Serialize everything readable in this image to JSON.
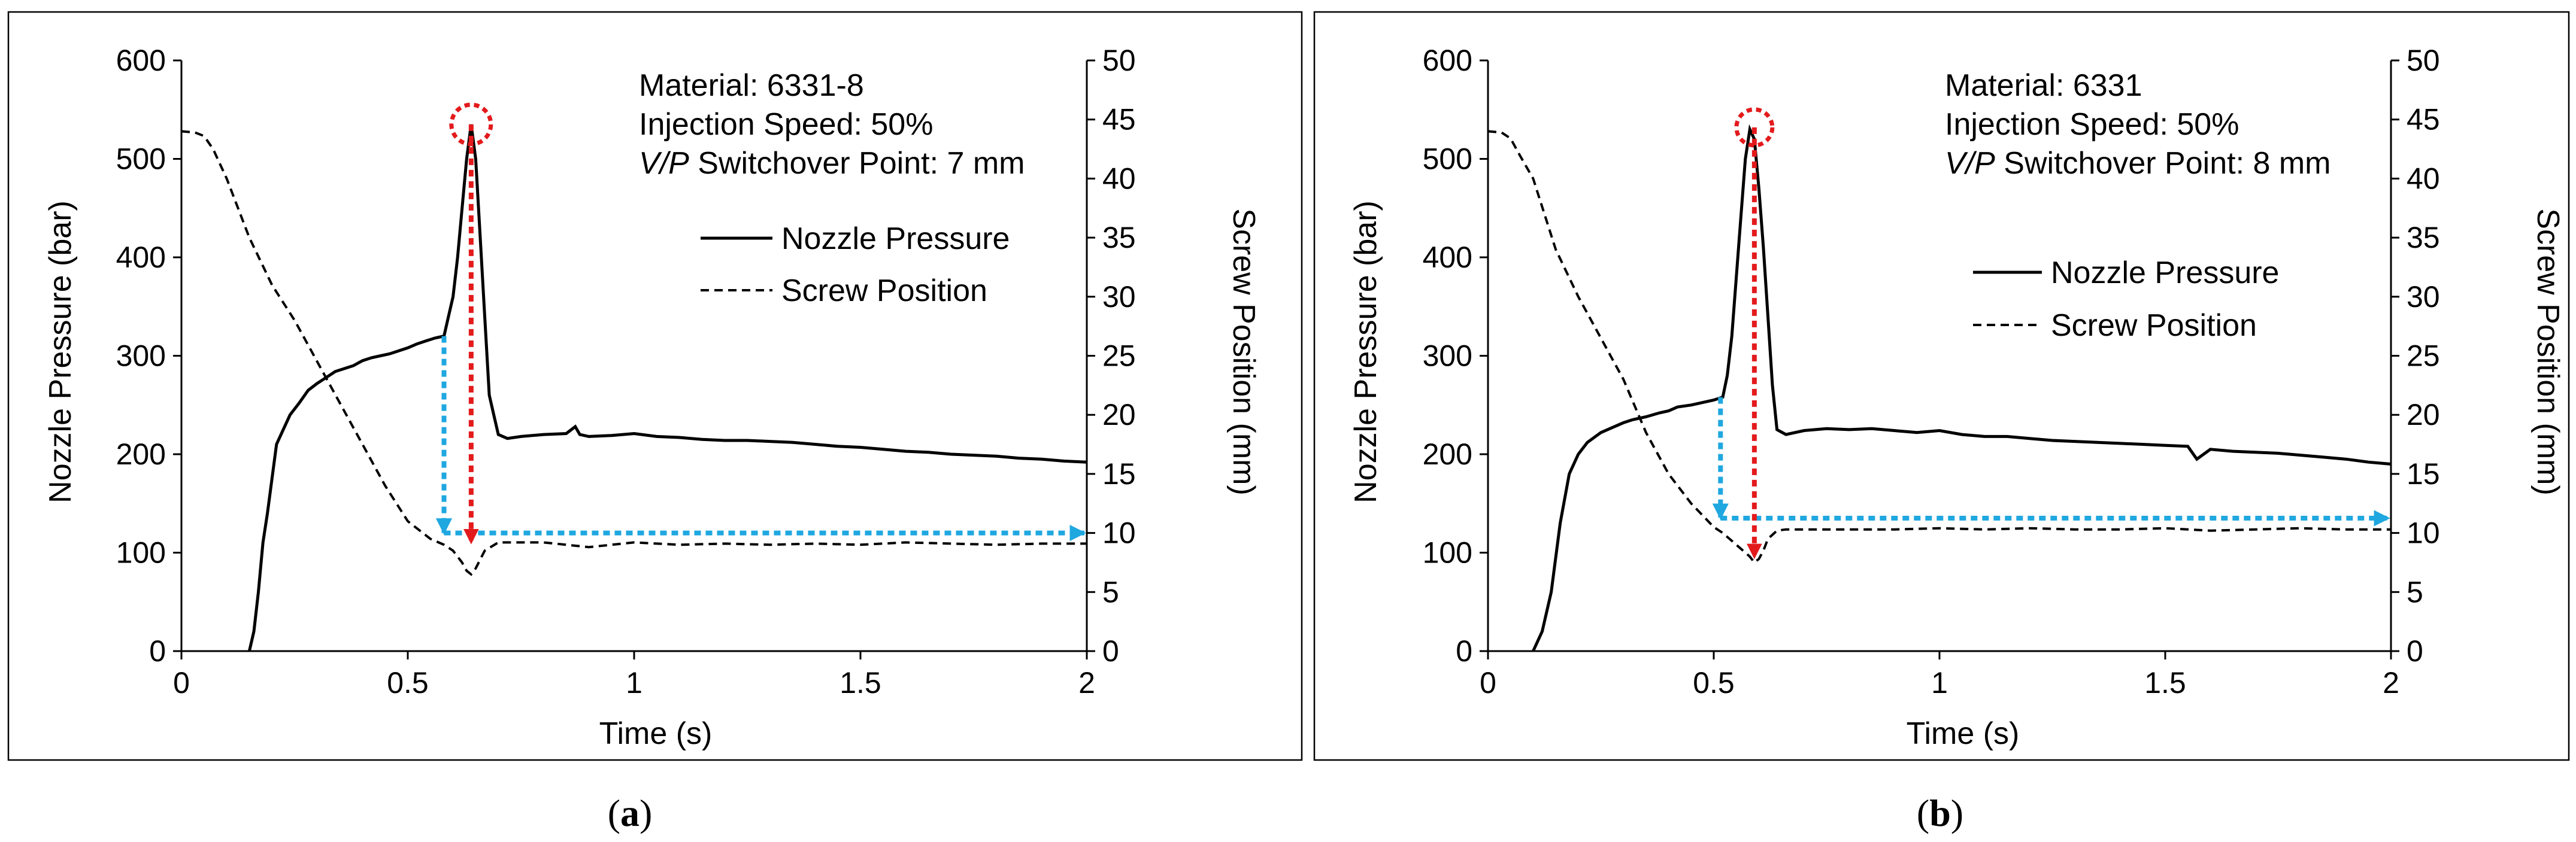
{
  "chart_data": [
    {
      "type": "line",
      "panel_label": "(a)",
      "panel_letter": "a",
      "info_lines": [
        {
          "text": "Material: 6331-8"
        },
        {
          "text": "Injection Speed: 50%"
        },
        {
          "text": "Switchover Point: 7 mm",
          "prefix_italic": "V/P"
        }
      ],
      "xlabel": "Time (s)",
      "ylabel": "Nozzle Pressure (bar)",
      "y2label": "Screw Position (mm)",
      "xlim": [
        0,
        2
      ],
      "xticks": [
        "0",
        "0.5",
        "1",
        "1.5",
        "2"
      ],
      "ylim": [
        0,
        600
      ],
      "yticks": [
        "0",
        "100",
        "200",
        "300",
        "400",
        "500",
        "600"
      ],
      "y2lim": [
        0,
        50
      ],
      "y2ticks": [
        "0",
        "5",
        "10",
        "15",
        "20",
        "25",
        "30",
        "35",
        "40",
        "45",
        "50"
      ],
      "legend": [
        "Nozzle Pressure",
        "Screw Position"
      ],
      "series": [
        {
          "name": "Nozzle Pressure",
          "axis": "left",
          "style": "solid",
          "x": [
            0.15,
            0.16,
            0.17,
            0.18,
            0.19,
            0.2,
            0.21,
            0.22,
            0.24,
            0.26,
            0.28,
            0.3,
            0.32,
            0.34,
            0.36,
            0.38,
            0.4,
            0.42,
            0.44,
            0.46,
            0.48,
            0.5,
            0.52,
            0.54,
            0.56,
            0.58,
            0.59,
            0.6,
            0.61,
            0.62,
            0.63,
            0.64,
            0.65,
            0.66,
            0.67,
            0.68,
            0.69,
            0.7,
            0.72,
            0.75,
            0.8,
            0.85,
            0.87,
            0.88,
            0.9,
            0.95,
            1.0,
            1.05,
            1.1,
            1.15,
            1.2,
            1.25,
            1.3,
            1.35,
            1.4,
            1.45,
            1.5,
            1.55,
            1.6,
            1.65,
            1.7,
            1.75,
            1.8,
            1.85,
            1.9,
            1.95,
            2.0
          ],
          "y": [
            0,
            20,
            60,
            110,
            140,
            175,
            210,
            220,
            240,
            252,
            265,
            272,
            278,
            284,
            287,
            290,
            295,
            298,
            300,
            302,
            305,
            308,
            312,
            315,
            318,
            320,
            340,
            360,
            400,
            450,
            500,
            535,
            500,
            420,
            340,
            260,
            240,
            220,
            216,
            218,
            220,
            221,
            228,
            220,
            218,
            219,
            221,
            218,
            217,
            215,
            214,
            214,
            213,
            212,
            210,
            208,
            207,
            205,
            203,
            202,
            200,
            199,
            198,
            196,
            195,
            193,
            192
          ]
        },
        {
          "name": "Screw Position",
          "axis": "right",
          "style": "dashed",
          "x": [
            0.0,
            0.03,
            0.05,
            0.07,
            0.1,
            0.15,
            0.2,
            0.25,
            0.3,
            0.35,
            0.4,
            0.45,
            0.5,
            0.55,
            0.58,
            0.6,
            0.62,
            0.63,
            0.64,
            0.65,
            0.67,
            0.7,
            0.75,
            0.8,
            0.85,
            0.9,
            0.95,
            1.0,
            1.1,
            1.2,
            1.3,
            1.4,
            1.5,
            1.6,
            1.7,
            1.8,
            1.9,
            2.0
          ],
          "y": [
            44.0,
            43.9,
            43.6,
            42.5,
            40.0,
            35.0,
            31.0,
            28.0,
            24.5,
            21.0,
            17.5,
            14.0,
            11.0,
            9.5,
            9.0,
            8.5,
            7.5,
            6.8,
            6.5,
            7.0,
            8.5,
            9.2,
            9.2,
            9.2,
            9.0,
            8.8,
            9.0,
            9.2,
            9.0,
            9.1,
            9.0,
            9.1,
            9.0,
            9.2,
            9.1,
            9.0,
            9.1,
            9.1
          ]
        }
      ],
      "annotations": {
        "peak": {
          "x": 0.64,
          "y": 535
        },
        "blue_vertical": {
          "x": 0.58,
          "y_from": 320,
          "y_to": 120
        },
        "blue_horizontal": {
          "y": 120,
          "x_from": 0.58,
          "x_to": 2.0
        },
        "red_arrow": {
          "x": 0.64,
          "y_from": 535,
          "y_to": 110
        }
      }
    },
    {
      "type": "line",
      "panel_label": "(b)",
      "panel_letter": "b",
      "info_lines": [
        {
          "text": "Material: 6331"
        },
        {
          "text": "Injection Speed: 50%"
        },
        {
          "text": "Switchover Point: 8 mm",
          "prefix_italic": "V/P"
        }
      ],
      "xlabel": "Time (s)",
      "ylabel": "Nozzle Pressure (bar)",
      "y2label": "Screw Position (mm)",
      "xlim": [
        0,
        2
      ],
      "xticks": [
        "0",
        "0.5",
        "1",
        "1.5",
        "2"
      ],
      "ylim": [
        0,
        600
      ],
      "yticks": [
        "0",
        "100",
        "200",
        "300",
        "400",
        "500",
        "600"
      ],
      "y2lim": [
        0,
        50
      ],
      "y2ticks": [
        "0",
        "5",
        "10",
        "15",
        "20",
        "25",
        "30",
        "35",
        "40",
        "45",
        "50"
      ],
      "legend": [
        "Nozzle Pressure",
        "Screw Position"
      ],
      "series": [
        {
          "name": "Nozzle Pressure",
          "axis": "left",
          "style": "solid",
          "x": [
            0.1,
            0.12,
            0.14,
            0.16,
            0.18,
            0.2,
            0.22,
            0.25,
            0.28,
            0.3,
            0.32,
            0.35,
            0.38,
            0.4,
            0.42,
            0.45,
            0.48,
            0.5,
            0.52,
            0.53,
            0.54,
            0.55,
            0.56,
            0.57,
            0.58,
            0.59,
            0.6,
            0.61,
            0.62,
            0.63,
            0.64,
            0.66,
            0.7,
            0.75,
            0.8,
            0.85,
            0.9,
            0.95,
            1.0,
            1.05,
            1.1,
            1.15,
            1.2,
            1.25,
            1.3,
            1.35,
            1.4,
            1.45,
            1.5,
            1.55,
            1.57,
            1.6,
            1.65,
            1.7,
            1.75,
            1.8,
            1.85,
            1.9,
            1.95,
            2.0
          ],
          "y": [
            0,
            20,
            60,
            130,
            180,
            200,
            212,
            222,
            228,
            232,
            235,
            238,
            242,
            244,
            248,
            250,
            253,
            255,
            258,
            280,
            320,
            380,
            440,
            500,
            530,
            520,
            470,
            410,
            340,
            270,
            225,
            220,
            224,
            226,
            225,
            226,
            224,
            222,
            224,
            220,
            218,
            218,
            216,
            214,
            213,
            212,
            211,
            210,
            209,
            208,
            195,
            205,
            203,
            202,
            201,
            199,
            197,
            195,
            192,
            190
          ]
        },
        {
          "name": "Screw Position",
          "axis": "right",
          "style": "dashed",
          "x": [
            0.0,
            0.03,
            0.05,
            0.07,
            0.1,
            0.15,
            0.2,
            0.25,
            0.3,
            0.35,
            0.4,
            0.45,
            0.5,
            0.52,
            0.55,
            0.58,
            0.59,
            0.6,
            0.61,
            0.62,
            0.64,
            0.66,
            0.7,
            0.8,
            0.9,
            1.0,
            1.1,
            1.2,
            1.3,
            1.4,
            1.5,
            1.6,
            1.7,
            1.8,
            1.9,
            2.0
          ],
          "y": [
            44.0,
            43.9,
            43.4,
            42.0,
            40.0,
            34.0,
            30.0,
            26.5,
            23.0,
            18.5,
            15.0,
            12.5,
            10.5,
            10.0,
            9.0,
            8.0,
            7.5,
            7.8,
            8.5,
            9.5,
            10.2,
            10.3,
            10.3,
            10.3,
            10.3,
            10.4,
            10.3,
            10.4,
            10.3,
            10.3,
            10.4,
            10.2,
            10.3,
            10.4,
            10.3,
            10.3
          ]
        }
      ],
      "annotations": {
        "peak": {
          "x": 0.59,
          "y": 532
        },
        "blue_vertical": {
          "x": 0.515,
          "y_from": 258,
          "y_to": 135
        },
        "blue_horizontal": {
          "y": 135,
          "x_from": 0.515,
          "x_to": 2.0
        },
        "red_arrow": {
          "x": 0.59,
          "y_from": 532,
          "y_to": 95
        }
      }
    }
  ]
}
